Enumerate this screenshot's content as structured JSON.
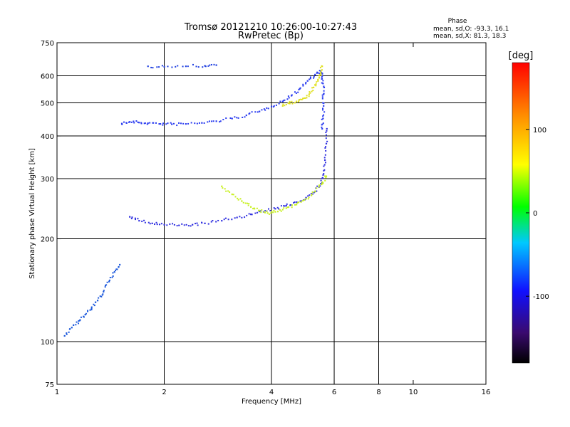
{
  "chart_data": {
    "type": "scatter",
    "title": "Tromsø 20121210 10:26:00-10:27:43",
    "subtitle": "RwPretec (Bp)",
    "xlabel": "Frequency [MHz]",
    "ylabel": "Stationary phase Virtual Height [km]",
    "x_scale": "log",
    "y_scale": "log",
    "xlim": [
      1,
      16
    ],
    "ylim": [
      75,
      750
    ],
    "x_ticks": [
      1,
      2,
      4,
      6,
      8,
      10,
      16
    ],
    "y_ticks": [
      75,
      100,
      200,
      300,
      400,
      500,
      600,
      750
    ],
    "x_gridlines": [
      2,
      4,
      6,
      8
    ],
    "y_gridlines": [
      100,
      200,
      300,
      400,
      500,
      600
    ],
    "grid": true,
    "phase_info": {
      "title": "Phase",
      "line1": "mean, sd,O: -93.3, 16.1",
      "line2": "mean, sd,X:  81.3, 18.3"
    },
    "colorbar": {
      "label": "[deg]",
      "ticks": [
        100,
        0,
        -100
      ],
      "range": [
        -180,
        180
      ],
      "colors": [
        "#000000",
        "#3a0a6e",
        "#1010ff",
        "#00c8ff",
        "#00ff00",
        "#ffff00",
        "#ff9000",
        "#ff0000"
      ]
    },
    "series": [
      {
        "role": "F2 ordinary trace",
        "color": "#2a3cf0",
        "points": [
          [
            1.52,
            435
          ],
          [
            1.6,
            440
          ],
          [
            1.7,
            438
          ],
          [
            1.8,
            436
          ],
          [
            1.95,
            434
          ],
          [
            2.1,
            433
          ],
          [
            2.3,
            434
          ],
          [
            2.55,
            437
          ],
          [
            2.8,
            442
          ],
          [
            3.1,
            450
          ],
          [
            3.4,
            460
          ],
          [
            3.7,
            472
          ],
          [
            4.0,
            488
          ],
          [
            4.3,
            505
          ],
          [
            4.55,
            525
          ],
          [
            4.8,
            550
          ],
          [
            5.05,
            580
          ],
          [
            5.3,
            605
          ],
          [
            5.5,
            620
          ],
          [
            5.55,
            600
          ],
          [
            5.58,
            570
          ],
          [
            5.6,
            530
          ],
          [
            5.6,
            490
          ],
          [
            5.58,
            450
          ],
          [
            5.55,
            420
          ]
        ]
      },
      {
        "role": "F2 x trace",
        "color": "#e0e020",
        "points": [
          [
            4.3,
            490
          ],
          [
            4.5,
            498
          ],
          [
            4.7,
            505
          ],
          [
            4.9,
            515
          ],
          [
            5.1,
            530
          ],
          [
            5.25,
            555
          ],
          [
            5.4,
            585
          ],
          [
            5.5,
            610
          ],
          [
            5.55,
            640
          ]
        ]
      },
      {
        "role": "F1 ordinary trace",
        "color": "#3030e0",
        "points": [
          [
            1.6,
            232
          ],
          [
            1.7,
            226
          ],
          [
            1.85,
            222
          ],
          [
            2.0,
            220
          ],
          [
            2.2,
            219
          ],
          [
            2.4,
            220
          ],
          [
            2.6,
            222
          ],
          [
            2.9,
            226
          ],
          [
            3.2,
            231
          ],
          [
            3.5,
            236
          ],
          [
            3.8,
            240
          ],
          [
            4.1,
            245
          ],
          [
            4.4,
            250
          ],
          [
            4.7,
            256
          ],
          [
            5.0,
            264
          ],
          [
            5.3,
            275
          ],
          [
            5.5,
            290
          ],
          [
            5.6,
            310
          ],
          [
            5.65,
            340
          ],
          [
            5.7,
            380
          ],
          [
            5.72,
            420
          ]
        ]
      },
      {
        "role": "F1 x trace",
        "color": "#c8f020",
        "points": [
          [
            2.9,
            285
          ],
          [
            3.1,
            270
          ],
          [
            3.3,
            258
          ],
          [
            3.5,
            248
          ],
          [
            3.7,
            242
          ],
          [
            3.9,
            238
          ],
          [
            4.1,
            240
          ],
          [
            4.4,
            246
          ],
          [
            4.7,
            252
          ],
          [
            5.0,
            262
          ],
          [
            5.3,
            275
          ],
          [
            5.55,
            290
          ],
          [
            5.7,
            305
          ]
        ]
      },
      {
        "role": "E region echoes",
        "color": "#1e5adc",
        "points": [
          [
            1.05,
            104
          ],
          [
            1.1,
            110
          ],
          [
            1.15,
            115
          ],
          [
            1.2,
            120
          ],
          [
            1.25,
            125
          ],
          [
            1.3,
            132
          ],
          [
            1.35,
            140
          ],
          [
            1.4,
            150
          ],
          [
            1.45,
            160
          ],
          [
            1.5,
            168
          ]
        ]
      },
      {
        "role": "upper flat trace",
        "color": "#2040e0",
        "points": [
          [
            1.8,
            640
          ],
          [
            2.0,
            638
          ],
          [
            2.3,
            640
          ],
          [
            2.6,
            642
          ],
          [
            2.8,
            645
          ]
        ]
      }
    ]
  }
}
